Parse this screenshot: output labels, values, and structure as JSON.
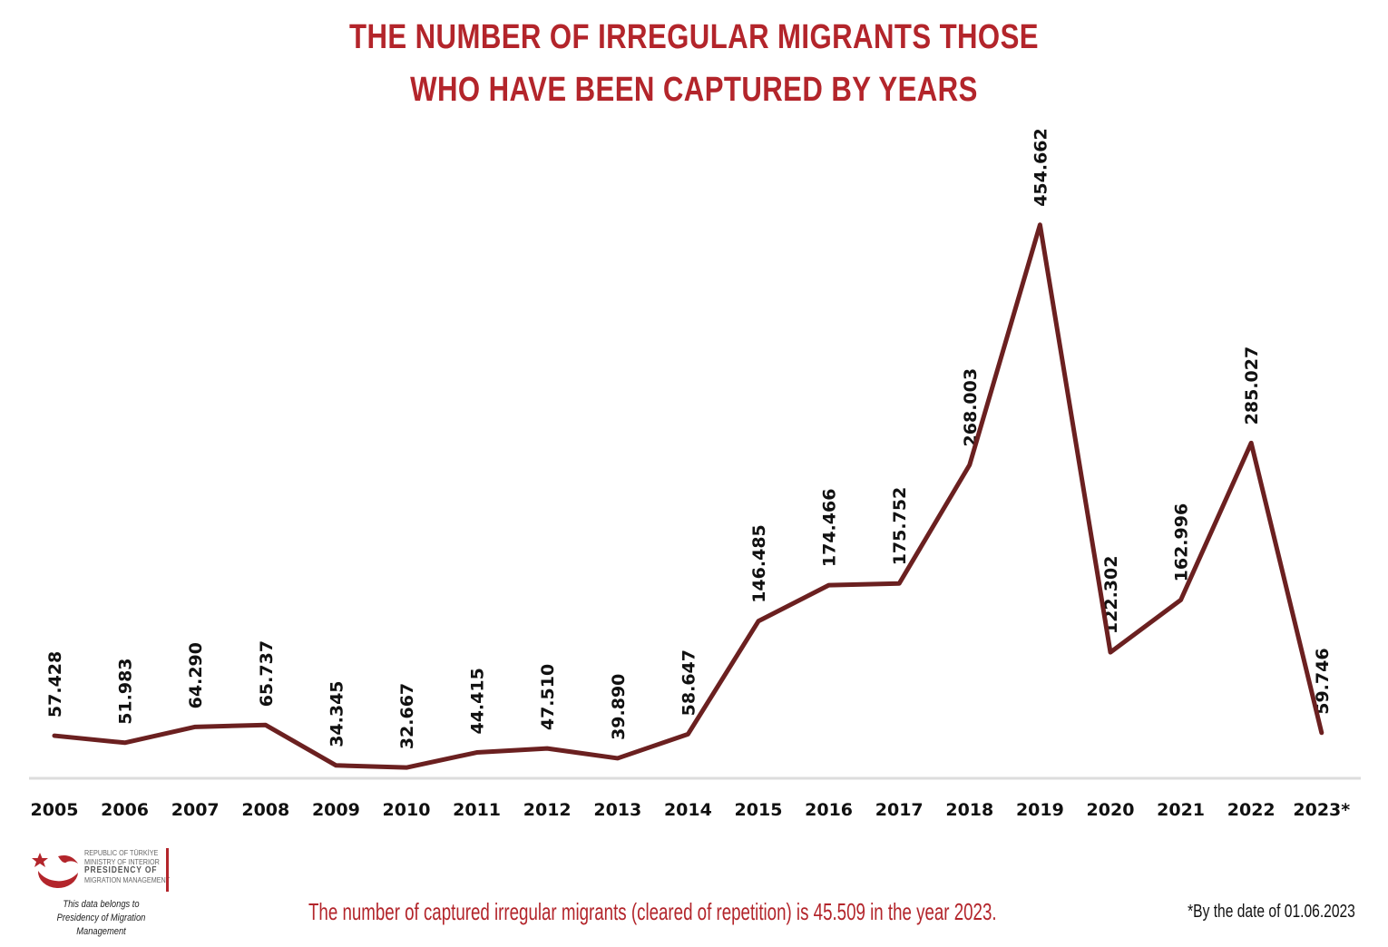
{
  "header": {
    "title_line1": "THE NUMBER OF IRREGULAR MIGRANTS THOSE",
    "title_line2": "WHO HAVE BEEN CAPTURED BY YEARS"
  },
  "chart_data": {
    "type": "line",
    "title": "THE NUMBER OF IRREGULAR MIGRANTS THOSE WHO HAVE BEEN CAPTURED BY YEARS",
    "categories": [
      "2005",
      "2006",
      "2007",
      "2008",
      "2009",
      "2010",
      "2011",
      "2012",
      "2013",
      "2014",
      "2015",
      "2016",
      "2017",
      "2018",
      "2019",
      "2020",
      "2021",
      "2022",
      "2023*"
    ],
    "values": [
      57428,
      51983,
      64290,
      65737,
      34345,
      32667,
      44415,
      47510,
      39890,
      58647,
      146485,
      174466,
      175752,
      268003,
      454662,
      122302,
      162996,
      285027,
      59746
    ],
    "labels": [
      "57.428",
      "51.983",
      "64.290",
      "65.737",
      "34.345",
      "32.667",
      "44.415",
      "47.510",
      "39.890",
      "58.647",
      "146.485",
      "174.466",
      "175.752",
      "268.003",
      "454.662",
      "122.302",
      "162.996",
      "285.027",
      "59.746"
    ],
    "xlabel": "",
    "ylabel": "",
    "grid": false,
    "line_color": "#6b2020"
  },
  "footer": {
    "logo_lines": [
      "REPUBLIC OF TÜRKİYE",
      "MINISTRY OF INTERIOR",
      "PRESIDENCY OF",
      "MIGRATION MANAGEMENT"
    ],
    "belongs_line1": "This data belongs to",
    "belongs_line2": "Presidency of Migration Management",
    "note": "The number of captured irregular migrants (cleared of repetition) is 45.509 in the year 2023.",
    "date_note": "*By the date of 01.06.2023"
  },
  "colors": {
    "title": "#b3252b",
    "line": "#6b2020",
    "axis": "#dddddd"
  }
}
